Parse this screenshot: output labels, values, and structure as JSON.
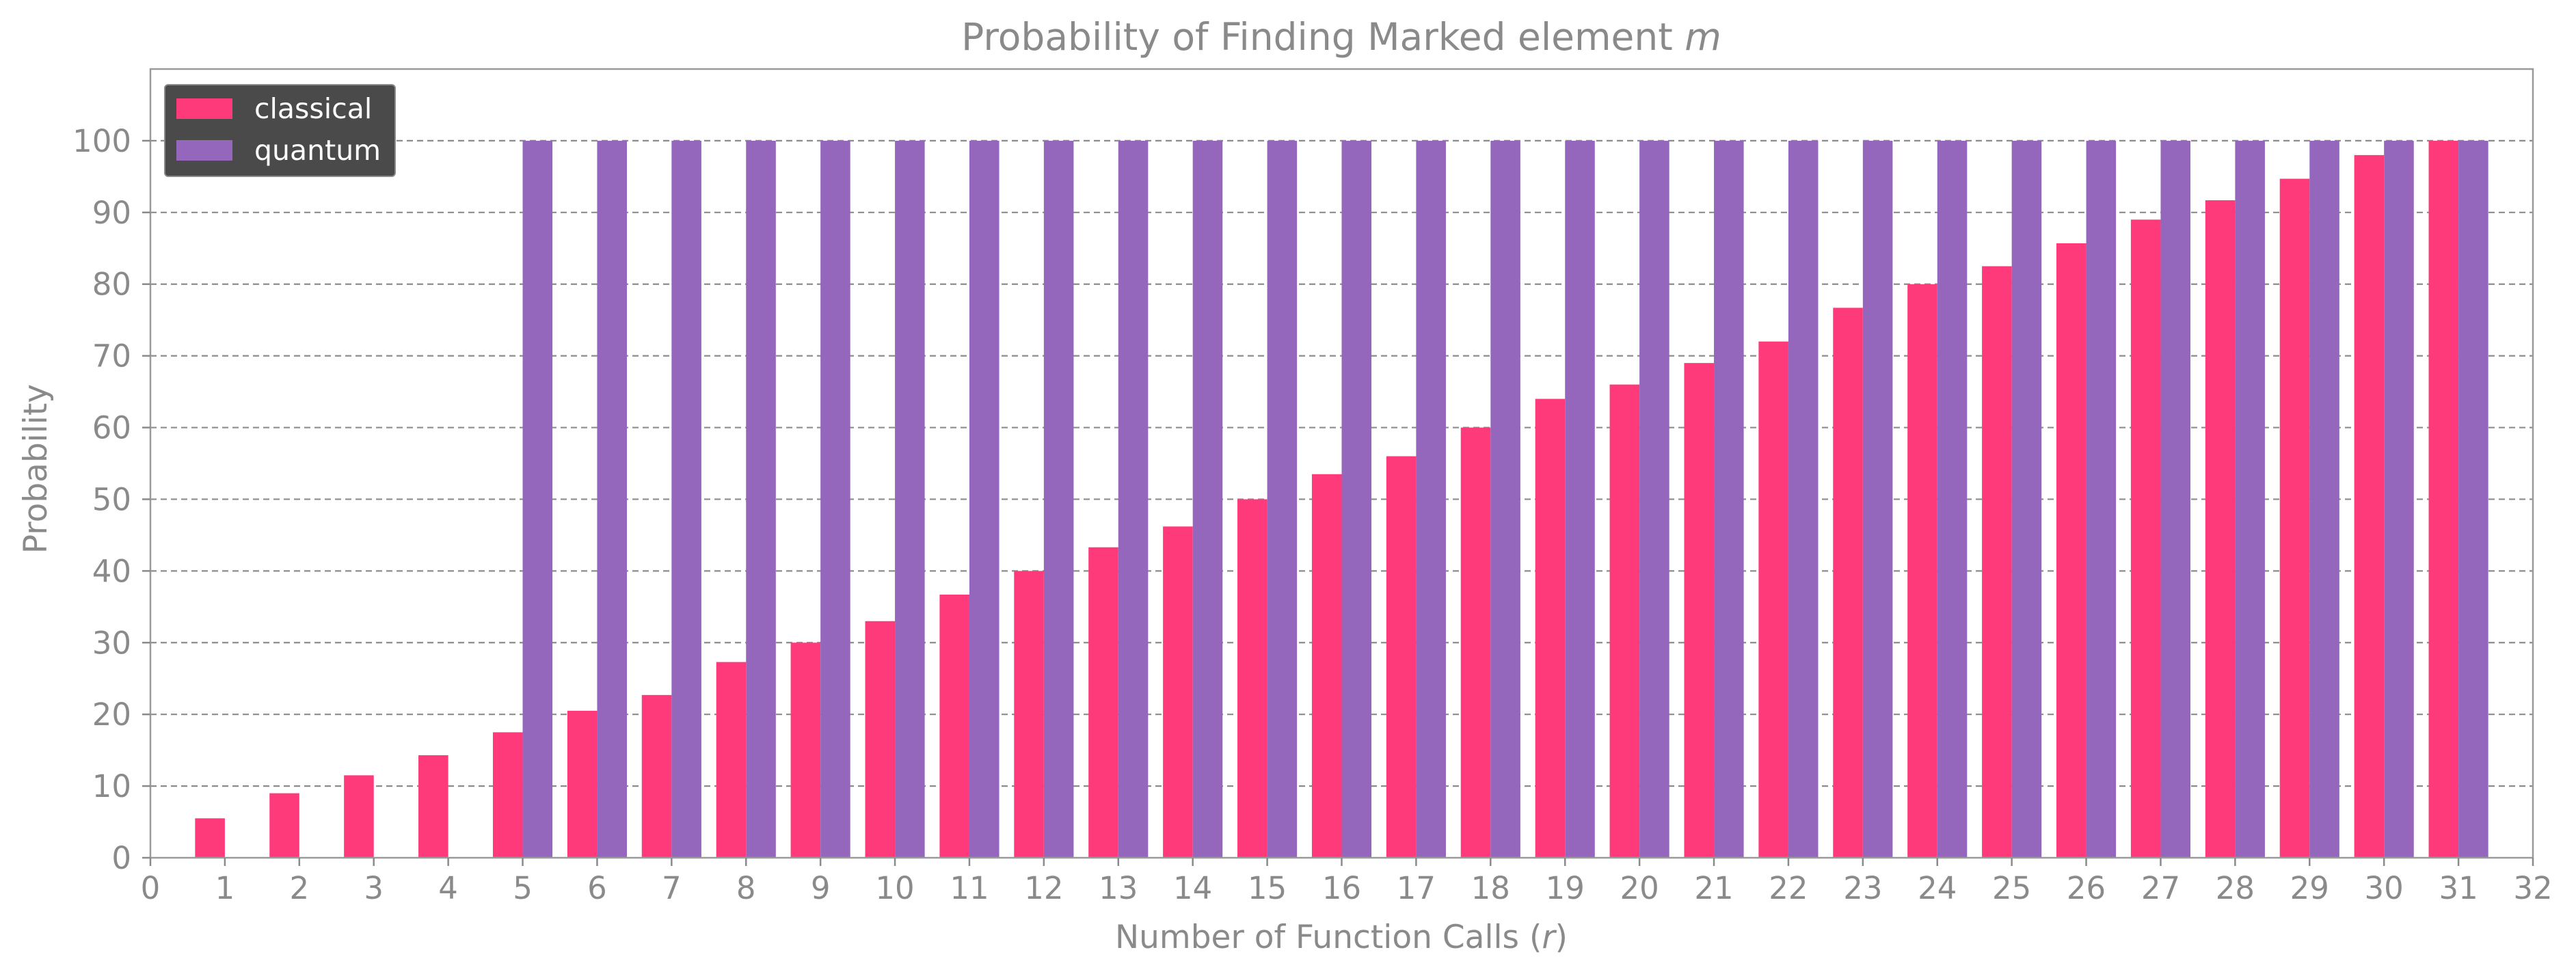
{
  "chart_data": {
    "type": "bar",
    "title_main": "Probability of Finding Marked element ",
    "title_var": "m",
    "xlabel_main": "Number of Function Calls (",
    "xlabel_var": "r",
    "xlabel_close": ")",
    "ylabel": "Probability",
    "x": [
      1,
      2,
      3,
      4,
      5,
      6,
      7,
      8,
      9,
      10,
      11,
      12,
      13,
      14,
      15,
      16,
      17,
      18,
      19,
      20,
      21,
      22,
      23,
      24,
      25,
      26,
      27,
      28,
      29,
      30,
      31
    ],
    "series": [
      {
        "name": "classical",
        "color": "#ff3a7a",
        "values": [
          5.5,
          9,
          11.5,
          14.3,
          17.5,
          20.5,
          22.7,
          27.3,
          30,
          33,
          36.7,
          40,
          43.3,
          46.2,
          50,
          53.5,
          56,
          60,
          64,
          66,
          69,
          72,
          76.7,
          80,
          82.5,
          85.7,
          89,
          91.7,
          94.7,
          98,
          100
        ]
      },
      {
        "name": "quantum",
        "color": "#9467bd",
        "values": [
          0,
          0,
          0,
          0,
          100,
          100,
          100,
          100,
          100,
          100,
          100,
          100,
          100,
          100,
          100,
          100,
          100,
          100,
          100,
          100,
          100,
          100,
          100,
          100,
          100,
          100,
          100,
          100,
          100,
          100,
          100
        ]
      }
    ],
    "xlim": [
      0,
      32
    ],
    "ylim": [
      0,
      110
    ],
    "xticks": [
      0,
      1,
      2,
      3,
      4,
      5,
      6,
      7,
      8,
      9,
      10,
      11,
      12,
      13,
      14,
      15,
      16,
      17,
      18,
      19,
      20,
      21,
      22,
      23,
      24,
      25,
      26,
      27,
      28,
      29,
      30,
      31,
      32
    ],
    "yticks": [
      0,
      10,
      20,
      30,
      40,
      50,
      60,
      70,
      80,
      90,
      100
    ],
    "grid": "horizontal-dashed",
    "legend_position": "top-left",
    "legend_bg": "#4a4a4a",
    "text_color": "#8a8a8a"
  }
}
